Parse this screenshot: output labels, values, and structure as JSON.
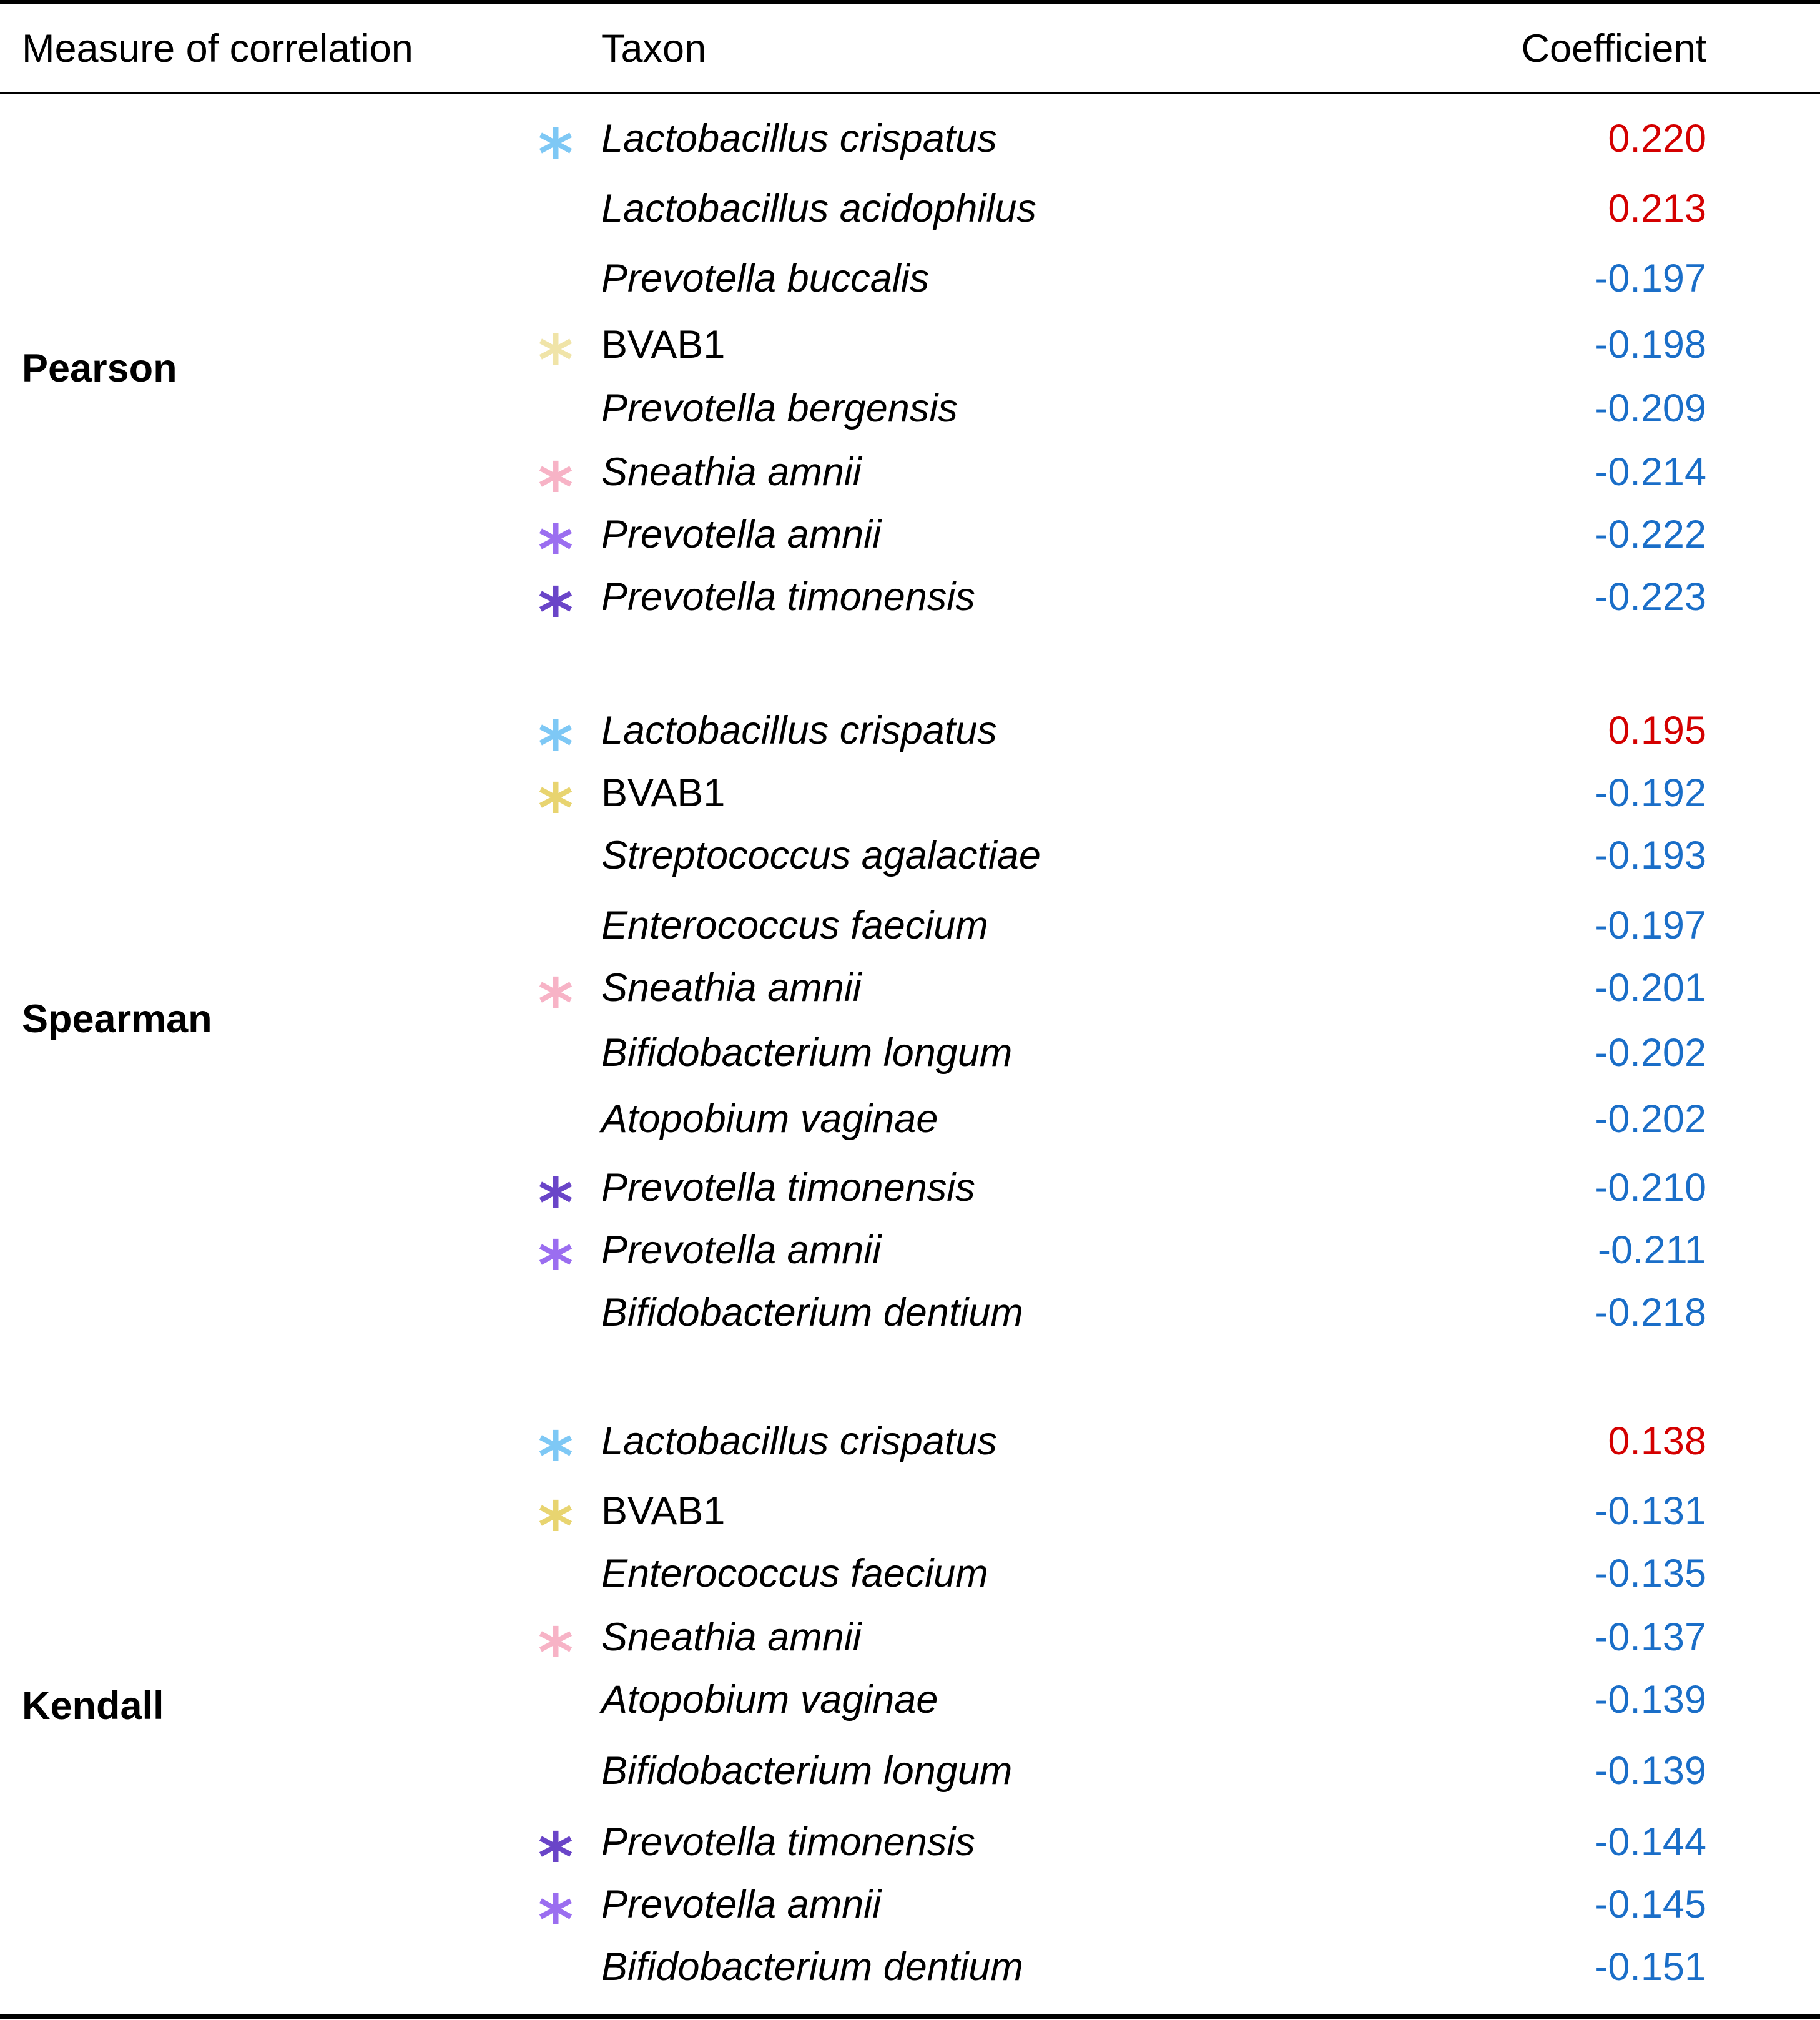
{
  "header": {
    "measure": "Measure of correlation",
    "taxon": "Taxon",
    "coefficient": "Coefficient"
  },
  "colors": {
    "positive": "#d40000",
    "negative": "#1a6ec8",
    "markers": {
      "lactobacillus_crispatus": "#7ec8f5",
      "bvab1_pearson": "#f0e4a8",
      "bvab1": "#e8d470",
      "sneathia_amnii": "#f7b3c6",
      "prevotella_amnii": "#9b6ef0",
      "prevotella_timonensis": "#6a45c8"
    }
  },
  "marker_glyph": "*",
  "groups": [
    {
      "label": "Pearson",
      "rows": [
        {
          "taxon": "Lactobacillus crispatus",
          "italic": true,
          "marker": "lactobacillus_crispatus",
          "coef": "0.220",
          "sign": "positive"
        },
        {
          "taxon": "Lactobacillus acidophilus",
          "italic": true,
          "marker": null,
          "coef": "0.213",
          "sign": "positive"
        },
        {
          "taxon": "Prevotella buccalis",
          "italic": true,
          "marker": null,
          "coef": "-0.197",
          "sign": "negative"
        },
        {
          "taxon": "BVAB1",
          "italic": false,
          "marker": "bvab1_pearson",
          "coef": "-0.198",
          "sign": "negative"
        },
        {
          "taxon": "Prevotella bergensis",
          "italic": true,
          "marker": null,
          "coef": "-0.209",
          "sign": "negative"
        },
        {
          "taxon": "Sneathia amnii",
          "italic": true,
          "marker": "sneathia_amnii",
          "coef": "-0.214",
          "sign": "negative"
        },
        {
          "taxon": "Prevotella amnii",
          "italic": true,
          "marker": "prevotella_amnii",
          "coef": "-0.222",
          "sign": "negative"
        },
        {
          "taxon": "Prevotella timonensis",
          "italic": true,
          "marker": "prevotella_timonensis",
          "coef": "-0.223",
          "sign": "negative"
        }
      ]
    },
    {
      "label": "Spearman",
      "rows": [
        {
          "taxon": "Lactobacillus crispatus",
          "italic": true,
          "marker": "lactobacillus_crispatus",
          "coef": "0.195",
          "sign": "positive"
        },
        {
          "taxon": "BVAB1",
          "italic": false,
          "marker": "bvab1",
          "coef": "-0.192",
          "sign": "negative"
        },
        {
          "taxon": "Streptococcus agalactiae",
          "italic": true,
          "marker": null,
          "coef": "-0.193",
          "sign": "negative"
        },
        {
          "taxon": "Enterococcus faecium",
          "italic": true,
          "marker": null,
          "coef": "-0.197",
          "sign": "negative"
        },
        {
          "taxon": "Sneathia amnii",
          "italic": true,
          "marker": "sneathia_amnii",
          "coef": "-0.201",
          "sign": "negative"
        },
        {
          "taxon": "Bifidobacterium longum",
          "italic": true,
          "marker": null,
          "coef": "-0.202",
          "sign": "negative"
        },
        {
          "taxon": "Atopobium vaginae",
          "italic": true,
          "marker": null,
          "coef": "-0.202",
          "sign": "negative"
        },
        {
          "taxon": "Prevotella timonensis",
          "italic": true,
          "marker": "prevotella_timonensis",
          "coef": "-0.210",
          "sign": "negative"
        },
        {
          "taxon": "Prevotella amnii",
          "italic": true,
          "marker": "prevotella_amnii",
          "coef": "-0.211",
          "sign": "negative"
        },
        {
          "taxon": "Bifidobacterium dentium",
          "italic": true,
          "marker": null,
          "coef": "-0.218",
          "sign": "negative"
        }
      ]
    },
    {
      "label": "Kendall",
      "rows": [
        {
          "taxon": "Lactobacillus crispatus",
          "italic": true,
          "marker": "lactobacillus_crispatus",
          "coef": "0.138",
          "sign": "positive"
        },
        {
          "taxon": "BVAB1",
          "italic": false,
          "marker": "bvab1",
          "coef": "-0.131",
          "sign": "negative"
        },
        {
          "taxon": "Enterococcus faecium",
          "italic": true,
          "marker": null,
          "coef": "-0.135",
          "sign": "negative"
        },
        {
          "taxon": "Sneathia amnii",
          "italic": true,
          "marker": "sneathia_amnii",
          "coef": "-0.137",
          "sign": "negative"
        },
        {
          "taxon": "Atopobium vaginae",
          "italic": true,
          "marker": null,
          "coef": "-0.139",
          "sign": "negative"
        },
        {
          "taxon": "Bifidobacterium longum",
          "italic": true,
          "marker": null,
          "coef": "-0.139",
          "sign": "negative"
        },
        {
          "taxon": "Prevotella timonensis",
          "italic": true,
          "marker": "prevotella_timonensis",
          "coef": "-0.144",
          "sign": "negative"
        },
        {
          "taxon": "Prevotella amnii",
          "italic": true,
          "marker": "prevotella_amnii",
          "coef": "-0.145",
          "sign": "negative"
        },
        {
          "taxon": "Bifidobacterium dentium",
          "italic": true,
          "marker": null,
          "coef": "-0.151",
          "sign": "negative"
        }
      ]
    }
  ]
}
